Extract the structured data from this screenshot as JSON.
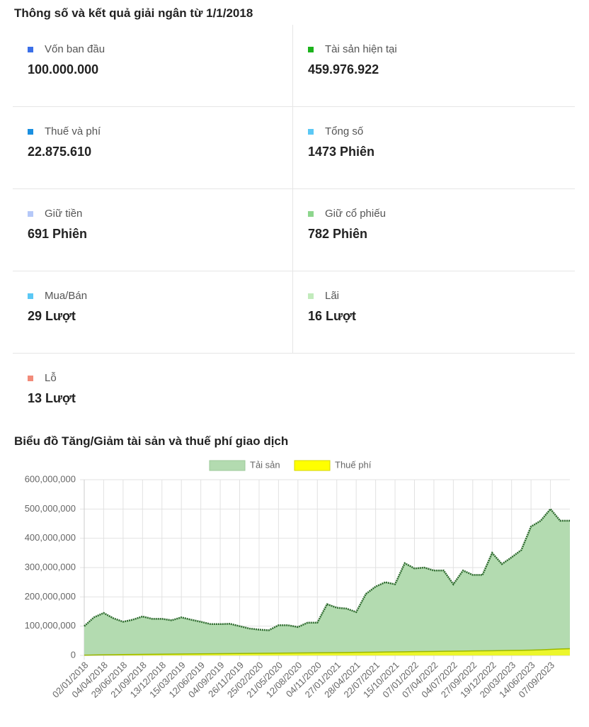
{
  "header": {
    "title": "Thông số và kết quả giải ngân từ 1/1/2018"
  },
  "stats": [
    {
      "label": "Vốn ban đầu",
      "value": "100.000.000",
      "color": "#3b6fe8"
    },
    {
      "label": "Tài sản hiện tại",
      "value": "459.976.922",
      "color": "#1db31d"
    },
    {
      "label": "Thuế và phí",
      "value": "22.875.610",
      "color": "#1a8fe0"
    },
    {
      "label": "Tổng số",
      "value": "1473 Phiên",
      "color": "#5bc8f5"
    },
    {
      "label": "Giữ tiền",
      "value": "691 Phiên",
      "color": "#b5c8f8"
    },
    {
      "label": "Giữ cổ phiếu",
      "value": "782 Phiên",
      "color": "#8dd68d"
    },
    {
      "label": "Mua/Bán",
      "value": "29 Lượt",
      "color": "#5bc8f5"
    },
    {
      "label": "Lãi",
      "value": "16 Lượt",
      "color": "#c2ebbc"
    },
    {
      "label": "Lỗ",
      "value": "13 Lượt",
      "color": "#f28b7a"
    }
  ],
  "chart_data": {
    "type": "area",
    "title": "Biểu đồ Tăng/Giảm tài sản và thuế phí giao dịch",
    "categories": [
      "02/01/2018",
      null,
      "04/04/2018",
      null,
      "29/06/2018",
      null,
      "21/09/2018",
      null,
      "13/12/2018",
      null,
      "15/03/2019",
      null,
      "12/06/2019",
      null,
      "04/09/2019",
      null,
      "26/11/2019",
      null,
      "25/02/2020",
      null,
      "21/05/2020",
      null,
      "12/08/2020",
      null,
      "04/11/2020",
      null,
      "27/01/2021",
      null,
      "28/04/2021",
      null,
      "22/07/2021",
      null,
      "15/10/2021",
      null,
      "07/01/2022",
      null,
      "07/04/2022",
      null,
      "04/07/2022",
      null,
      "27/09/2022",
      null,
      "19/12/2022",
      null,
      "20/03/2023",
      null,
      "14/06/2023",
      null,
      "07/09/2023",
      null,
      null
    ],
    "series": [
      {
        "name": "Tải sản",
        "color": "#b3dbb0",
        "values": [
          100000000,
          130000000,
          145000000,
          127000000,
          115000000,
          122000000,
          133000000,
          125000000,
          125000000,
          120000000,
          130000000,
          122000000,
          115000000,
          107000000,
          107000000,
          108000000,
          100000000,
          92000000,
          88000000,
          86000000,
          103000000,
          103000000,
          97000000,
          112000000,
          112000000,
          175000000,
          163000000,
          160000000,
          148000000,
          210000000,
          235000000,
          250000000,
          243000000,
          315000000,
          297000000,
          300000000,
          290000000,
          290000000,
          243000000,
          290000000,
          275000000,
          275000000,
          350000000,
          312000000,
          335000000,
          360000000,
          440000000,
          460000000,
          500000000,
          460000000,
          460000000
        ]
      },
      {
        "name": "Thuế phí",
        "color": "#ffff00",
        "values": [
          1000000,
          1500000,
          2000000,
          2500000,
          3000000,
          3300000,
          3600000,
          3900000,
          4200000,
          4500000,
          4800000,
          5100000,
          5400000,
          5700000,
          6000000,
          6300000,
          6600000,
          6900000,
          7200000,
          7500000,
          7800000,
          8100000,
          8400000,
          8700000,
          9000000,
          9300000,
          9700000,
          10100000,
          10500000,
          10900000,
          11300000,
          11700000,
          12100000,
          12500000,
          12900000,
          13300000,
          13700000,
          14100000,
          14500000,
          14900000,
          15300000,
          15700000,
          16100000,
          16600000,
          17100000,
          17600000,
          18200000,
          19000000,
          20500000,
          22000000,
          22875610
        ]
      }
    ],
    "ylim": [
      0,
      600000000
    ],
    "yticks": [
      {
        "value": 0,
        "label": "0"
      },
      {
        "value": 100000000,
        "label": "100,000,000"
      },
      {
        "value": 200000000,
        "label": "200,000,000"
      },
      {
        "value": 300000000,
        "label": "300,000,000"
      },
      {
        "value": 400000000,
        "label": "400,000,000"
      },
      {
        "value": 500000000,
        "label": "500,000,000"
      },
      {
        "value": 600000000,
        "label": "600,000,000"
      }
    ],
    "grid": true,
    "legend": "top"
  }
}
